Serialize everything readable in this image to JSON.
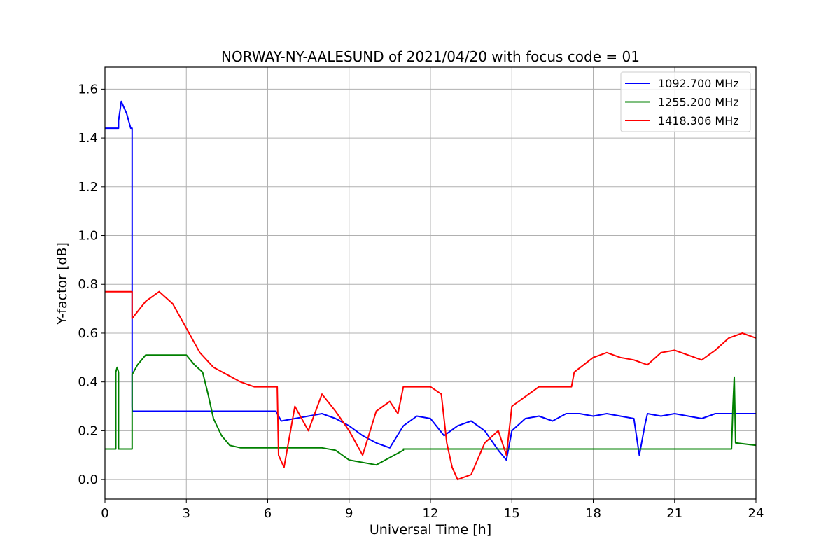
{
  "chart_data": {
    "type": "line",
    "title": "NORWAY-NY-AALESUND of 2021/04/20 with focus code = 01",
    "xlabel": "Universal Time [h]",
    "ylabel": "Y-factor [dB]",
    "xlim": [
      0,
      24
    ],
    "ylim": [
      -0.08,
      1.69
    ],
    "xticks": [
      0,
      3,
      6,
      9,
      12,
      15,
      18,
      21,
      24
    ],
    "yticks": [
      0.0,
      0.2,
      0.4,
      0.6,
      0.8,
      1.0,
      1.2,
      1.4,
      1.6
    ],
    "ytick_labels": [
      "0.0",
      "0.2",
      "0.4",
      "0.6",
      "0.8",
      "1.0",
      "1.2",
      "1.4",
      "1.6"
    ],
    "grid": true,
    "legend_position": "top-right",
    "series": [
      {
        "name": "1092.700 MHz",
        "color": "#0000ff",
        "x": [
          0,
          0.5,
          0.5,
          0.6,
          0.8,
          0.95,
          1.0,
          1.0,
          1.01,
          4.0,
          4.8,
          6.3,
          6.5,
          8.0,
          8.5,
          9.0,
          9.5,
          10.0,
          10.5,
          11.0,
          11.5,
          12.0,
          12.5,
          13.0,
          13.5,
          14.0,
          14.5,
          14.8,
          15.0,
          15.5,
          16.0,
          16.5,
          17.0,
          17.5,
          18.0,
          18.5,
          19.0,
          19.5,
          19.7,
          19.9,
          20.0,
          20.5,
          21.0,
          21.5,
          22.0,
          22.5,
          23.0,
          23.5,
          24.0
        ],
        "y": [
          1.44,
          1.44,
          1.47,
          1.55,
          1.5,
          1.44,
          1.44,
          0.3,
          0.28,
          0.28,
          0.28,
          0.28,
          0.24,
          0.27,
          0.25,
          0.22,
          0.18,
          0.15,
          0.13,
          0.22,
          0.26,
          0.25,
          0.18,
          0.22,
          0.24,
          0.2,
          0.12,
          0.08,
          0.2,
          0.25,
          0.26,
          0.24,
          0.27,
          0.27,
          0.26,
          0.27,
          0.26,
          0.25,
          0.1,
          0.22,
          0.27,
          0.26,
          0.27,
          0.26,
          0.25,
          0.27,
          0.27,
          0.27,
          0.27
        ]
      },
      {
        "name": "1255.200 MHz",
        "color": "#008000",
        "x": [
          0,
          0.4,
          0.4,
          0.45,
          0.5,
          0.5,
          1.0,
          1.0,
          1.2,
          1.5,
          2.0,
          3.0,
          3.3,
          3.6,
          3.8,
          4.0,
          4.3,
          4.6,
          5.0,
          6.0,
          8.0,
          8.5,
          9.0,
          9.5,
          10.0,
          10.5,
          11.0,
          11.0,
          23.1,
          23.15,
          23.2,
          23.25,
          24.0
        ],
        "y": [
          0.125,
          0.125,
          0.44,
          0.46,
          0.44,
          0.125,
          0.125,
          0.43,
          0.47,
          0.51,
          0.51,
          0.51,
          0.47,
          0.44,
          0.35,
          0.25,
          0.18,
          0.14,
          0.13,
          0.13,
          0.13,
          0.12,
          0.08,
          0.07,
          0.06,
          0.09,
          0.12,
          0.125,
          0.125,
          0.3,
          0.42,
          0.15,
          0.14
        ]
      },
      {
        "name": "1418.306 MHz",
        "color": "#ff0000",
        "x": [
          0,
          1.0,
          1.0,
          1.5,
          2.0,
          2.5,
          3.0,
          3.5,
          4.0,
          4.5,
          5.0,
          5.5,
          6.0,
          6.35,
          6.4,
          6.6,
          7.0,
          7.5,
          8.0,
          8.5,
          9.0,
          9.5,
          10.0,
          10.5,
          10.8,
          11.0,
          12.0,
          12.4,
          12.6,
          12.8,
          13.0,
          13.5,
          14.0,
          14.5,
          14.8,
          15.0,
          16.0,
          17.2,
          17.3,
          18.0,
          18.5,
          19.0,
          19.5,
          20.0,
          20.5,
          21.0,
          21.5,
          22.0,
          22.5,
          23.0,
          23.5,
          24.0
        ],
        "y": [
          0.77,
          0.77,
          0.66,
          0.73,
          0.77,
          0.72,
          0.62,
          0.52,
          0.46,
          0.43,
          0.4,
          0.38,
          0.38,
          0.38,
          0.1,
          0.05,
          0.3,
          0.2,
          0.35,
          0.28,
          0.2,
          0.1,
          0.28,
          0.32,
          0.27,
          0.38,
          0.38,
          0.35,
          0.15,
          0.05,
          0.0,
          0.02,
          0.15,
          0.2,
          0.1,
          0.3,
          0.38,
          0.38,
          0.44,
          0.5,
          0.52,
          0.5,
          0.49,
          0.47,
          0.52,
          0.53,
          0.51,
          0.49,
          0.53,
          0.58,
          0.6,
          0.58
        ]
      }
    ]
  }
}
